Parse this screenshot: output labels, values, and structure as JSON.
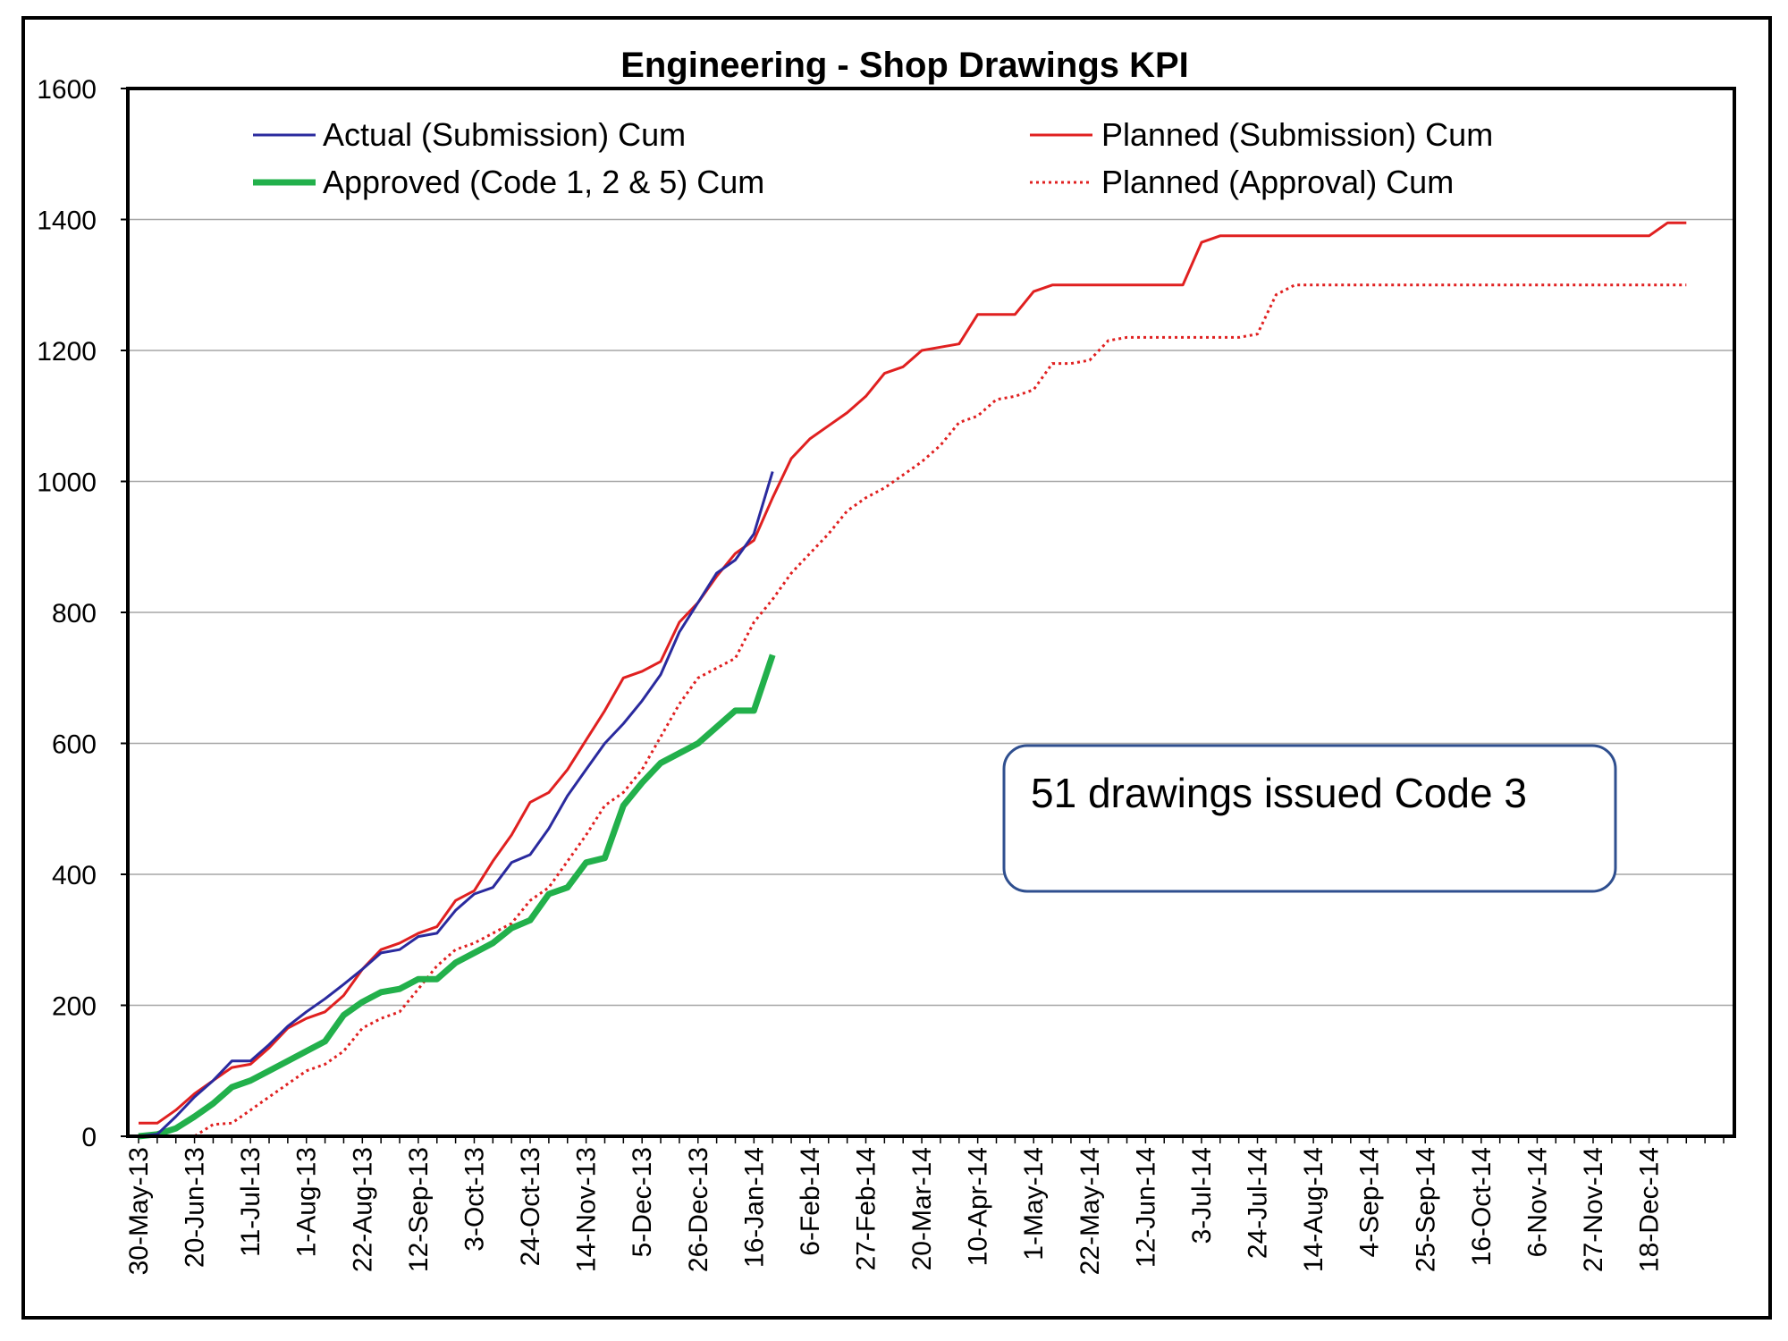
{
  "chart_data": {
    "type": "line",
    "title": "Engineering - Shop Drawings KPI",
    "xlabel": "",
    "ylabel": "",
    "ylim": [
      0,
      1600
    ],
    "yticks": [
      0,
      200,
      400,
      600,
      800,
      1000,
      1200,
      1400,
      1600
    ],
    "x_tick_labels": [
      "30-May-13",
      "20-Jun-13",
      "11-Jul-13",
      "1-Aug-13",
      "22-Aug-13",
      "12-Sep-13",
      "3-Oct-13",
      "24-Oct-13",
      "14-Nov-13",
      "5-Dec-13",
      "26-Dec-13",
      "16-Jan-14",
      "6-Feb-14",
      "27-Feb-14",
      "20-Mar-14",
      "10-Apr-14",
      "1-May-14",
      "22-May-14",
      "12-Jun-14",
      "3-Jul-14",
      "24-Jul-14",
      "14-Aug-14",
      "4-Sep-14",
      "25-Sep-14",
      "16-Oct-14",
      "6-Nov-14",
      "27-Nov-14",
      "18-Dec-14"
    ],
    "x_axis_week_count": 85,
    "grid": true,
    "legend_position": "top",
    "series": [
      {
        "name": "Actual (Submission) Cum",
        "color": "#2a2a9e",
        "style": "solid",
        "x": [
          "30-May-13",
          "6-Jun-13",
          "13-Jun-13",
          "20-Jun-13",
          "27-Jun-13",
          "4-Jul-13",
          "11-Jul-13",
          "18-Jul-13",
          "25-Jul-13",
          "1-Aug-13",
          "8-Aug-13",
          "15-Aug-13",
          "22-Aug-13",
          "29-Aug-13",
          "5-Sep-13",
          "12-Sep-13",
          "19-Sep-13",
          "26-Sep-13",
          "3-Oct-13",
          "10-Oct-13",
          "17-Oct-13",
          "24-Oct-13",
          "31-Oct-13",
          "7-Nov-13",
          "14-Nov-13",
          "21-Nov-13",
          "28-Nov-13",
          "5-Dec-13",
          "12-Dec-13",
          "19-Dec-13",
          "26-Dec-13",
          "2-Jan-14",
          "9-Jan-14",
          "16-Jan-14",
          "23-Jan-14"
        ],
        "y": [
          0,
          3,
          30,
          60,
          85,
          115,
          115,
          140,
          168,
          190,
          210,
          232,
          255,
          280,
          285,
          305,
          310,
          345,
          370,
          380,
          418,
          430,
          470,
          520,
          560,
          600,
          630,
          665,
          705,
          770,
          815,
          860,
          880,
          920,
          1015
        ]
      },
      {
        "name": "Approved (Code 1, 2 & 5) Cum",
        "color": "#22b04b",
        "style": "solid-thick",
        "x": [
          "30-May-13",
          "6-Jun-13",
          "13-Jun-13",
          "20-Jun-13",
          "27-Jun-13",
          "4-Jul-13",
          "11-Jul-13",
          "18-Jul-13",
          "25-Jul-13",
          "1-Aug-13",
          "8-Aug-13",
          "15-Aug-13",
          "22-Aug-13",
          "29-Aug-13",
          "5-Sep-13",
          "12-Sep-13",
          "19-Sep-13",
          "26-Sep-13",
          "3-Oct-13",
          "10-Oct-13",
          "17-Oct-13",
          "24-Oct-13",
          "31-Oct-13",
          "7-Nov-13",
          "14-Nov-13",
          "21-Nov-13",
          "28-Nov-13",
          "5-Dec-13",
          "12-Dec-13",
          "19-Dec-13",
          "26-Dec-13",
          "2-Jan-14",
          "9-Jan-14",
          "16-Jan-14",
          "23-Jan-14"
        ],
        "y": [
          0,
          3,
          12,
          30,
          50,
          75,
          85,
          100,
          115,
          130,
          145,
          185,
          205,
          220,
          225,
          240,
          240,
          265,
          280,
          295,
          318,
          330,
          370,
          380,
          418,
          425,
          505,
          540,
          570,
          585,
          600,
          625,
          650,
          650,
          735
        ]
      },
      {
        "name": "Planned (Submission) Cum",
        "color": "#e02020",
        "style": "solid",
        "x": [
          "30-May-13",
          "6-Jun-13",
          "13-Jun-13",
          "20-Jun-13",
          "27-Jun-13",
          "4-Jul-13",
          "11-Jul-13",
          "18-Jul-13",
          "25-Jul-13",
          "1-Aug-13",
          "8-Aug-13",
          "15-Aug-13",
          "22-Aug-13",
          "29-Aug-13",
          "5-Sep-13",
          "12-Sep-13",
          "19-Sep-13",
          "26-Sep-13",
          "3-Oct-13",
          "10-Oct-13",
          "17-Oct-13",
          "24-Oct-13",
          "31-Oct-13",
          "7-Nov-13",
          "14-Nov-13",
          "21-Nov-13",
          "28-Nov-13",
          "5-Dec-13",
          "12-Dec-13",
          "19-Dec-13",
          "26-Dec-13",
          "2-Jan-14",
          "9-Jan-14",
          "16-Jan-14",
          "23-Jan-14",
          "30-Jan-14",
          "6-Feb-14",
          "13-Feb-14",
          "20-Feb-14",
          "27-Feb-14",
          "6-Mar-14",
          "13-Mar-14",
          "20-Mar-14",
          "27-Mar-14",
          "3-Apr-14",
          "10-Apr-14",
          "17-Apr-14",
          "24-Apr-14",
          "1-May-14",
          "8-May-14",
          "15-May-14",
          "22-May-14",
          "29-May-14",
          "5-Jun-14",
          "12-Jun-14",
          "19-Jun-14",
          "26-Jun-14",
          "3-Jul-14",
          "10-Jul-14",
          "17-Jul-14",
          "24-Jul-14",
          "31-Jul-14",
          "7-Aug-14",
          "14-Aug-14",
          "21-Aug-14",
          "28-Aug-14",
          "4-Sep-14",
          "11-Sep-14",
          "18-Sep-14",
          "25-Sep-14",
          "2-Oct-14",
          "9-Oct-14",
          "16-Oct-14",
          "23-Oct-14",
          "30-Oct-14",
          "6-Nov-14",
          "13-Nov-14",
          "20-Nov-14",
          "27-Nov-14",
          "4-Dec-14",
          "11-Dec-14",
          "18-Dec-14",
          "25-Dec-14",
          "1-Jan-15"
        ],
        "y": [
          20,
          20,
          40,
          65,
          85,
          105,
          110,
          135,
          165,
          180,
          190,
          215,
          255,
          285,
          295,
          310,
          320,
          360,
          375,
          420,
          460,
          510,
          525,
          560,
          605,
          650,
          700,
          710,
          725,
          785,
          815,
          855,
          890,
          910,
          975,
          1035,
          1065,
          1085,
          1105,
          1130,
          1165,
          1175,
          1200,
          1205,
          1210,
          1255,
          1255,
          1255,
          1290,
          1300,
          1300,
          1300,
          1300,
          1300,
          1300,
          1300,
          1300,
          1365,
          1375,
          1375,
          1375,
          1375,
          1375,
          1375,
          1375,
          1375,
          1375,
          1375,
          1375,
          1375,
          1375,
          1375,
          1375,
          1375,
          1375,
          1375,
          1375,
          1375,
          1375,
          1375,
          1375,
          1375,
          1395,
          1395
        ]
      },
      {
        "name": "Planned (Approval) Cum",
        "color": "#e02020",
        "style": "dotted",
        "x": [
          "30-May-13",
          "6-Jun-13",
          "13-Jun-13",
          "20-Jun-13",
          "27-Jun-13",
          "4-Jul-13",
          "11-Jul-13",
          "18-Jul-13",
          "25-Jul-13",
          "1-Aug-13",
          "8-Aug-13",
          "15-Aug-13",
          "22-Aug-13",
          "29-Aug-13",
          "5-Sep-13",
          "12-Sep-13",
          "19-Sep-13",
          "26-Sep-13",
          "3-Oct-13",
          "10-Oct-13",
          "17-Oct-13",
          "24-Oct-13",
          "31-Oct-13",
          "7-Nov-13",
          "14-Nov-13",
          "21-Nov-13",
          "28-Nov-13",
          "5-Dec-13",
          "12-Dec-13",
          "19-Dec-13",
          "26-Dec-13",
          "2-Jan-14",
          "9-Jan-14",
          "16-Jan-14",
          "23-Jan-14",
          "30-Jan-14",
          "6-Feb-14",
          "13-Feb-14",
          "20-Feb-14",
          "27-Feb-14",
          "6-Mar-14",
          "13-Mar-14",
          "20-Mar-14",
          "27-Mar-14",
          "3-Apr-14",
          "10-Apr-14",
          "17-Apr-14",
          "24-Apr-14",
          "1-May-14",
          "8-May-14",
          "15-May-14",
          "22-May-14",
          "29-May-14",
          "5-Jun-14",
          "12-Jun-14",
          "19-Jun-14",
          "26-Jun-14",
          "3-Jul-14",
          "10-Jul-14",
          "17-Jul-14",
          "24-Jul-14",
          "31-Jul-14",
          "7-Aug-14",
          "14-Aug-14",
          "21-Aug-14",
          "28-Aug-14",
          "4-Sep-14",
          "11-Sep-14",
          "18-Sep-14",
          "25-Sep-14",
          "2-Oct-14",
          "9-Oct-14",
          "16-Oct-14",
          "23-Oct-14",
          "30-Oct-14",
          "6-Nov-14",
          "13-Nov-14",
          "20-Nov-14",
          "27-Nov-14",
          "4-Dec-14",
          "11-Dec-14",
          "18-Dec-14",
          "25-Dec-14",
          "1-Jan-15"
        ],
        "y": [
          0,
          0,
          0,
          0,
          18,
          20,
          40,
          60,
          80,
          100,
          110,
          130,
          165,
          180,
          190,
          225,
          260,
          285,
          295,
          310,
          325,
          360,
          380,
          420,
          460,
          505,
          525,
          560,
          610,
          660,
          700,
          715,
          730,
          785,
          820,
          860,
          890,
          920,
          955,
          975,
          990,
          1010,
          1030,
          1055,
          1090,
          1100,
          1125,
          1130,
          1140,
          1180,
          1180,
          1185,
          1215,
          1220,
          1220,
          1220,
          1220,
          1220,
          1220,
          1220,
          1225,
          1285,
          1300,
          1300,
          1300,
          1300,
          1300,
          1300,
          1300,
          1300,
          1300,
          1300,
          1300,
          1300,
          1300,
          1300,
          1300,
          1300,
          1300,
          1300,
          1300,
          1300,
          1300,
          1300
        ]
      }
    ],
    "annotation": "51 drawings issued Code 3"
  },
  "legend": {
    "actual_submission": "Actual (Submission) Cum",
    "approved": "Approved (Code 1, 2 & 5) Cum",
    "planned_submission": "Planned (Submission) Cum",
    "planned_approval": "Planned (Approval) Cum"
  },
  "colors": {
    "actual": "#2a2a9e",
    "approved": "#22b04b",
    "planned": "#e02020",
    "grid": "#a6a6a6",
    "annotation_border": "#2f4f8f"
  }
}
